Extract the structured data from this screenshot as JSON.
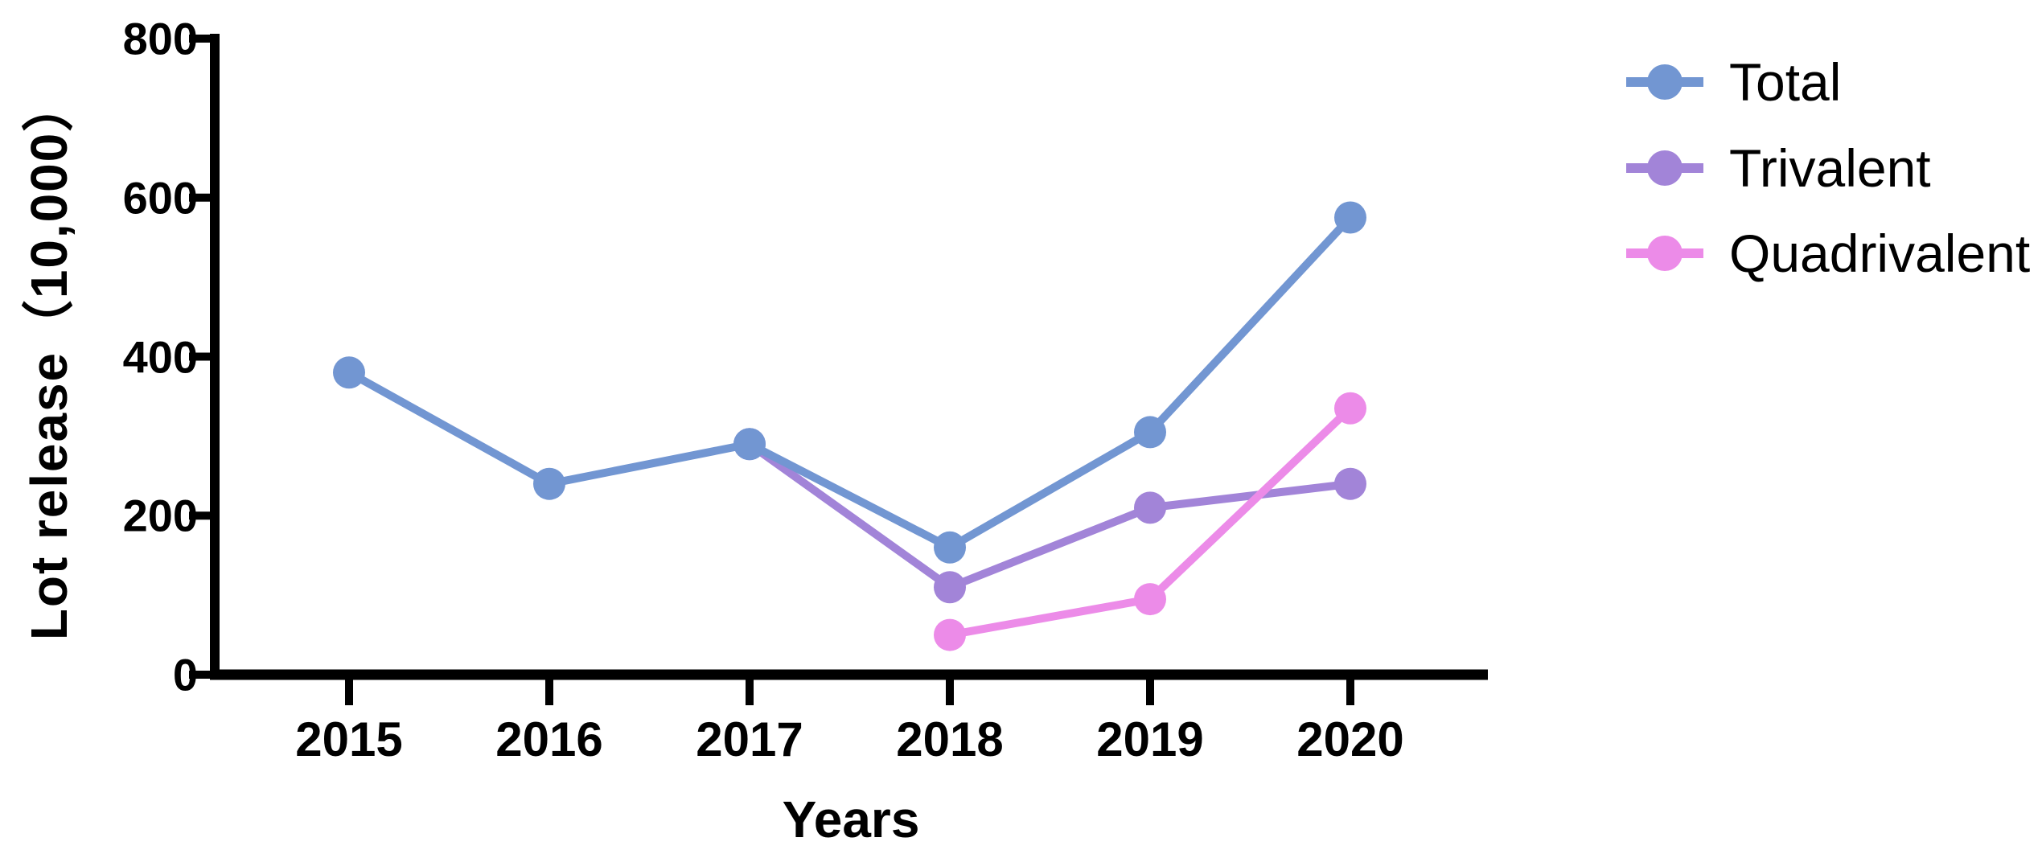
{
  "chart_data": {
    "type": "line",
    "title": "",
    "xlabel": "Years",
    "ylabel": "Lot release（10,000）",
    "categories": [
      "2015",
      "2016",
      "2017",
      "2018",
      "2019",
      "2020"
    ],
    "yticks": [
      0,
      200,
      400,
      600,
      800
    ],
    "ylim": [
      0,
      800
    ],
    "grid": false,
    "legend_position": "right-top",
    "axis_color": "#000000",
    "background_color": "#ffffff",
    "series": [
      {
        "name": "Total",
        "color": "#7296D2",
        "values": [
          380,
          240,
          290,
          160,
          305,
          575
        ]
      },
      {
        "name": "Trivalent",
        "color": "#A284D8",
        "values": [
          null,
          null,
          290,
          110,
          210,
          240
        ]
      },
      {
        "name": "Quadrivalent",
        "color": "#EC8BE8",
        "values": [
          null,
          null,
          null,
          50,
          95,
          335
        ]
      }
    ]
  }
}
